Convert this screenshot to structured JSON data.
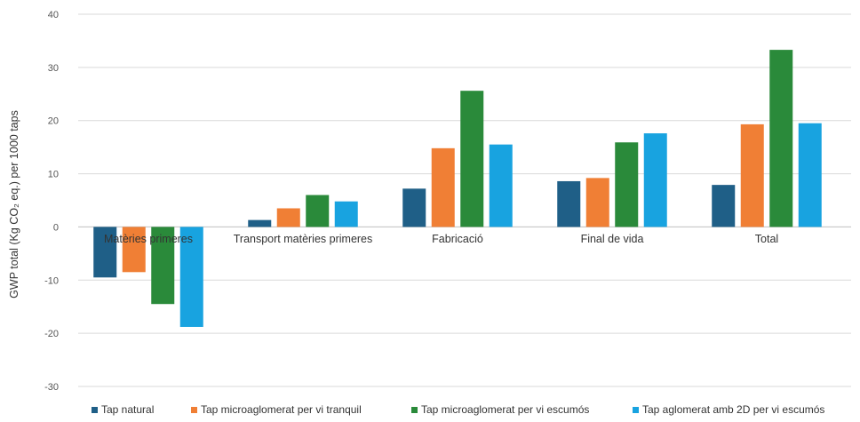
{
  "chart_data": {
    "type": "bar",
    "title": "",
    "xlabel": "",
    "ylabel": "GWP total (Kg CO₂ eq.) per 1000 taps",
    "ylim": [
      -30,
      40
    ],
    "yticks": [
      40,
      30,
      20,
      10,
      0,
      -10,
      -20,
      -30
    ],
    "grid": true,
    "legend_position": "bottom",
    "categories": [
      "Matèries primeres",
      "Transport matèries primeres",
      "Fabricació",
      "Final de vida",
      "Total"
    ],
    "series": [
      {
        "name": "Tap natural",
        "color": "#1f5f87",
        "values": [
          -9.5,
          1.3,
          7.2,
          8.6,
          7.9
        ]
      },
      {
        "name": "Tap microaglomerat per vi tranquil",
        "color": "#f07f35",
        "values": [
          -8.5,
          3.5,
          14.8,
          9.2,
          19.3
        ]
      },
      {
        "name": "Tap microaglomerat per vi escumós",
        "color": "#2a8a3a",
        "values": [
          -14.5,
          6.0,
          25.6,
          15.9,
          33.3
        ]
      },
      {
        "name": "Tap aglomerat amb 2D per vi escumós",
        "color": "#18a3e0",
        "values": [
          -18.8,
          4.8,
          15.5,
          17.6,
          19.5
        ]
      }
    ]
  }
}
